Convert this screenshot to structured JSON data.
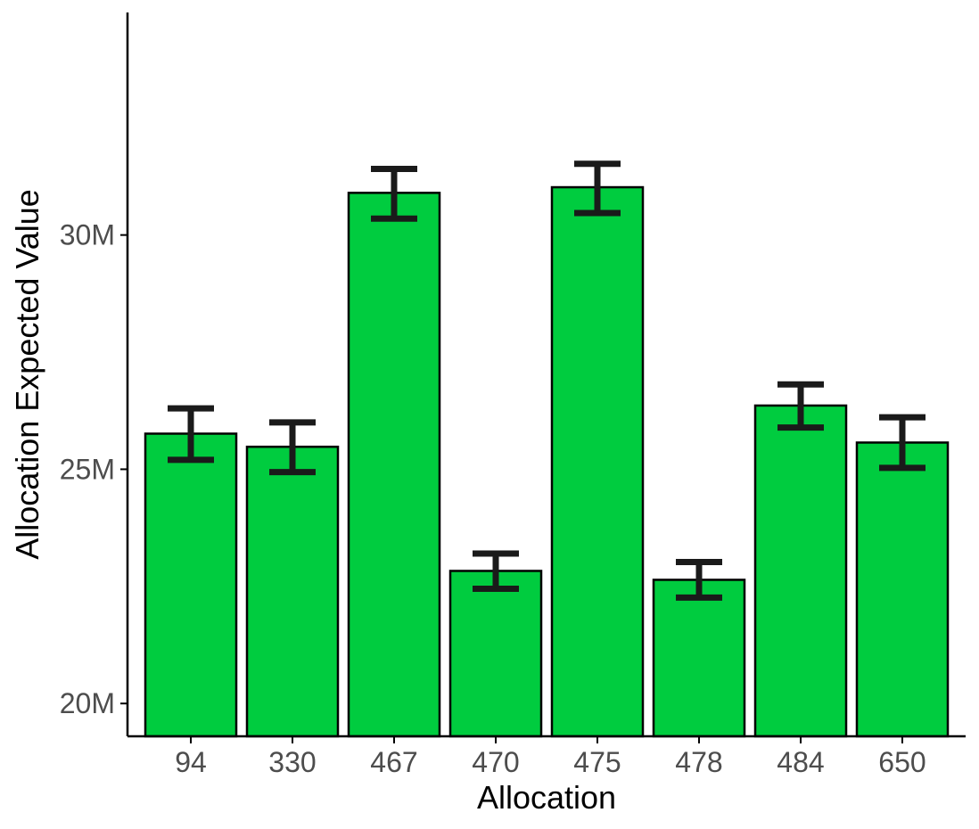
{
  "chart_data": {
    "type": "bar",
    "title": "",
    "xlabel": "Allocation",
    "ylabel": "Allocation Expected Value",
    "categories": [
      "94",
      "330",
      "467",
      "470",
      "475",
      "478",
      "484",
      "650"
    ],
    "values": [
      25760000,
      25480000,
      30900000,
      22830000,
      31020000,
      22640000,
      26360000,
      25570000
    ],
    "error_low": [
      25200000,
      24940000,
      30350000,
      22450000,
      30470000,
      22260000,
      25890000,
      25030000
    ],
    "error_high": [
      26300000,
      26000000,
      31410000,
      23200000,
      31520000,
      23020000,
      26810000,
      26110000
    ],
    "ylim": [
      19300000,
      34750000
    ],
    "y_ticks": [
      {
        "value": 20000000,
        "label": "20M"
      },
      {
        "value": 25000000,
        "label": "25M"
      },
      {
        "value": 30000000,
        "label": "30M"
      }
    ],
    "grid": false,
    "legend": "none",
    "colors": {
      "bar_fill": "#00cc3f",
      "bar_stroke": "#000000",
      "error_bar": "#1a1a1a",
      "axis": "#000000",
      "tick_label": "#4d4d4d"
    }
  }
}
